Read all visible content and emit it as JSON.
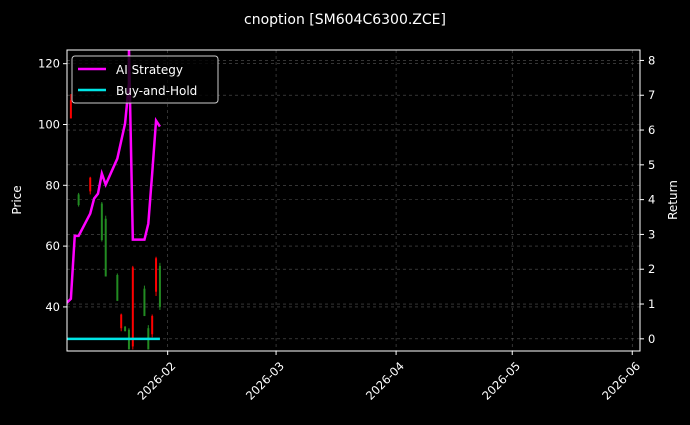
{
  "chart_data": {
    "type": "line",
    "title": "cnoption [SM604C6300.ZCE]",
    "ylabel_left": "Price",
    "ylabel_right": "Return",
    "xlim": [
      "2026-01-06",
      "2026-06-03"
    ],
    "ylim_left": [
      25.5,
      124.5
    ],
    "ylim_right": [
      -0.35,
      8.3
    ],
    "x_ticks": [
      "2026-02",
      "2026-03",
      "2026-04",
      "2026-05",
      "2026-06"
    ],
    "x_tick_dates": [
      "2026-02-01",
      "2026-03-01",
      "2026-04-01",
      "2026-05-01",
      "2026-06-01"
    ],
    "y_ticks_left": [
      40,
      60,
      80,
      100,
      120
    ],
    "y_ticks_right": [
      0,
      1,
      2,
      3,
      4,
      5,
      6,
      7,
      8
    ],
    "grid": true,
    "legend_position": "top-left",
    "colors": {
      "background": "#000000",
      "strategy": "#ff00ff",
      "buy_hold": "#00e5e5",
      "up": "#228b22",
      "down": "#ff0000",
      "grid": "#555555"
    },
    "candles": [
      {
        "date": "2026-01-07",
        "open": 108,
        "high": 110,
        "low": 102,
        "close": 102
      },
      {
        "date": "2026-01-09",
        "open": 73.5,
        "high": 77.5,
        "low": 73,
        "close": 77
      },
      {
        "date": "2026-01-12",
        "open": 82.5,
        "high": 82.8,
        "low": 77,
        "close": 78
      },
      {
        "date": "2026-01-15",
        "open": 62,
        "high": 74.5,
        "low": 61.5,
        "close": 74
      },
      {
        "date": "2026-01-16",
        "open": 50,
        "high": 70,
        "low": 50,
        "close": 69
      },
      {
        "date": "2026-01-19",
        "open": 42,
        "high": 51,
        "low": 42,
        "close": 50.5
      },
      {
        "date": "2026-01-20",
        "open": 37.5,
        "high": 37.8,
        "low": 32,
        "close": 33
      },
      {
        "date": "2026-01-21",
        "open": 32,
        "high": 33.7,
        "low": 32,
        "close": 33.5
      },
      {
        "date": "2026-01-22",
        "open": 26,
        "high": 33,
        "low": 26,
        "close": 32.5
      },
      {
        "date": "2026-01-23",
        "open": 53,
        "high": 53.5,
        "low": 26,
        "close": 27
      },
      {
        "date": "2026-01-26",
        "open": 37,
        "high": 47,
        "low": 37,
        "close": 46
      },
      {
        "date": "2026-01-27",
        "open": 26,
        "high": 34,
        "low": 26,
        "close": 33
      },
      {
        "date": "2026-01-28",
        "open": 37,
        "high": 37.5,
        "low": 30,
        "close": 31
      },
      {
        "date": "2026-01-29",
        "open": 56,
        "high": 56.5,
        "low": 43.6,
        "close": 45
      },
      {
        "date": "2026-01-30",
        "open": 40,
        "high": 54.5,
        "low": 39,
        "close": 53.5
      }
    ],
    "series": [
      {
        "name": "AI Strategy",
        "axis": "right",
        "x": [
          "2026-01-06",
          "2026-01-07",
          "2026-01-08",
          "2026-01-09",
          "2026-01-12",
          "2026-01-13",
          "2026-01-14",
          "2026-01-15",
          "2026-01-16",
          "2026-01-19",
          "2026-01-21",
          "2026-01-22",
          "2026-01-22",
          "2026-01-23",
          "2026-01-26",
          "2026-01-27",
          "2026-01-28",
          "2026-01-29",
          "2026-01-30"
        ],
        "values": [
          1.04,
          1.15,
          2.96,
          2.96,
          3.6,
          4.03,
          4.17,
          4.75,
          4.43,
          5.18,
          6.19,
          7.34,
          8.4,
          2.85,
          2.85,
          3.31,
          4.75,
          6.27,
          6.1
        ]
      },
      {
        "name": "Buy-and-Hold",
        "axis": "right",
        "x": [
          "2026-01-06",
          "2026-01-30"
        ],
        "values": [
          0,
          0
        ]
      }
    ]
  }
}
